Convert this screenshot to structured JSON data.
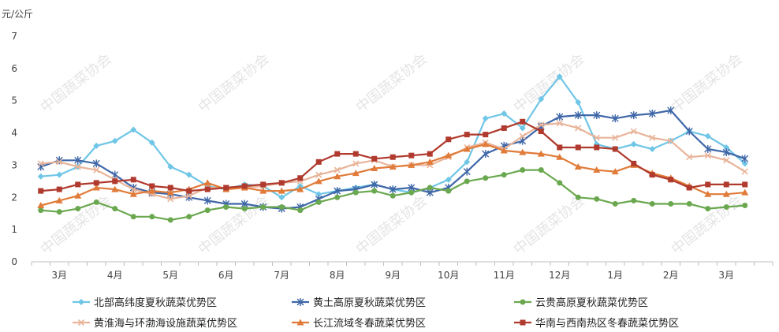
{
  "chart_data": {
    "type": "line",
    "unit_label": "元/公斤",
    "ylim": [
      0,
      7
    ],
    "yticks": [
      0,
      1,
      2,
      3,
      4,
      5,
      6,
      7
    ],
    "x_count": 40,
    "month_labels": [
      {
        "label": "3月",
        "index": 1
      },
      {
        "label": "4月",
        "index": 4
      },
      {
        "label": "5月",
        "index": 7
      },
      {
        "label": "6月",
        "index": 10
      },
      {
        "label": "7月",
        "index": 13
      },
      {
        "label": "8月",
        "index": 16
      },
      {
        "label": "9月",
        "index": 19
      },
      {
        "label": "10月",
        "index": 22
      },
      {
        "label": "11月",
        "index": 25
      },
      {
        "label": "12月",
        "index": 28
      },
      {
        "label": "1月",
        "index": 31
      },
      {
        "label": "2月",
        "index": 34
      },
      {
        "label": "3月",
        "index": 37
      }
    ],
    "grid": false,
    "legend_position": "bottom",
    "watermark": "中国蔬菜协会",
    "series": [
      {
        "name": "北部高纬度夏秋蔬菜优势区",
        "color": "#6fc6e6",
        "marker": "diamond",
        "values": [
          2.65,
          2.7,
          2.95,
          3.6,
          3.75,
          4.1,
          3.7,
          2.95,
          2.7,
          2.35,
          2.25,
          2.4,
          2.35,
          2.0,
          2.35,
          2.1,
          2.2,
          2.3,
          2.4,
          2.25,
          2.15,
          2.3,
          2.55,
          3.1,
          4.45,
          4.6,
          4.15,
          5.05,
          5.75,
          4.95,
          3.65,
          3.5,
          3.65,
          3.5,
          3.75,
          4.05,
          3.9,
          3.55,
          3.05,
          null
        ]
      },
      {
        "name": "黄土高原夏秋蔬菜优势区",
        "color": "#3f67a8",
        "marker": "star",
        "values": [
          2.95,
          3.15,
          3.15,
          3.05,
          2.7,
          2.3,
          2.15,
          2.1,
          2.0,
          1.9,
          1.8,
          1.8,
          1.7,
          1.65,
          1.7,
          1.95,
          2.2,
          2.25,
          2.4,
          2.25,
          2.3,
          2.15,
          2.3,
          2.8,
          3.35,
          3.6,
          3.75,
          4.2,
          4.5,
          4.55,
          4.55,
          4.45,
          4.55,
          4.6,
          4.7,
          4.05,
          3.5,
          3.4,
          3.2,
          null
        ]
      },
      {
        "name": "云贵高原夏秋蔬菜优势区",
        "color": "#6aa84f",
        "marker": "circle",
        "values": [
          1.6,
          1.55,
          1.65,
          1.85,
          1.65,
          1.4,
          1.4,
          1.3,
          1.4,
          1.6,
          1.7,
          1.65,
          1.7,
          1.7,
          1.6,
          1.85,
          2.0,
          2.15,
          2.2,
          2.05,
          2.15,
          2.3,
          2.2,
          2.5,
          2.6,
          2.7,
          2.85,
          2.85,
          2.45,
          2.0,
          1.95,
          1.8,
          1.9,
          1.8,
          1.8,
          1.8,
          1.65,
          1.7,
          1.75,
          null
        ]
      },
      {
        "name": "黄淮海与环渤海设施蔬菜优势区",
        "color": "#e8b49a",
        "marker": "x",
        "values": [
          3.05,
          3.1,
          2.95,
          2.85,
          2.55,
          2.25,
          2.1,
          1.95,
          2.05,
          2.3,
          2.3,
          2.3,
          2.35,
          2.45,
          2.5,
          2.7,
          2.85,
          3.05,
          3.15,
          2.95,
          3.0,
          3.0,
          3.25,
          3.55,
          3.7,
          3.5,
          3.9,
          4.25,
          4.3,
          4.15,
          3.85,
          3.85,
          4.05,
          3.85,
          3.75,
          3.25,
          3.3,
          3.15,
          2.8,
          null
        ]
      },
      {
        "name": "长江流域冬春蔬菜优势区",
        "color": "#e07b39",
        "marker": "triangle",
        "values": [
          1.75,
          1.9,
          2.05,
          2.3,
          2.25,
          2.1,
          2.2,
          2.15,
          2.25,
          2.45,
          2.25,
          2.3,
          2.2,
          2.2,
          2.25,
          2.5,
          2.65,
          2.75,
          2.9,
          2.95,
          3.0,
          3.1,
          3.3,
          3.5,
          3.65,
          3.45,
          3.4,
          3.35,
          3.25,
          2.95,
          2.85,
          2.8,
          3.0,
          2.75,
          2.6,
          2.35,
          2.1,
          2.1,
          2.15,
          null
        ]
      },
      {
        "name": "华南与西南热区冬春蔬菜优势区",
        "color": "#b03a2e",
        "marker": "square",
        "values": [
          2.2,
          2.25,
          2.4,
          2.45,
          2.5,
          2.55,
          2.35,
          2.3,
          2.2,
          2.25,
          2.3,
          2.35,
          2.4,
          2.45,
          2.6,
          3.1,
          3.35,
          3.35,
          3.2,
          3.25,
          3.3,
          3.35,
          3.8,
          3.95,
          3.95,
          4.15,
          4.35,
          4.05,
          3.55,
          3.55,
          3.55,
          3.5,
          3.05,
          2.7,
          2.55,
          2.3,
          2.4,
          2.4,
          2.4,
          null
        ]
      }
    ]
  }
}
